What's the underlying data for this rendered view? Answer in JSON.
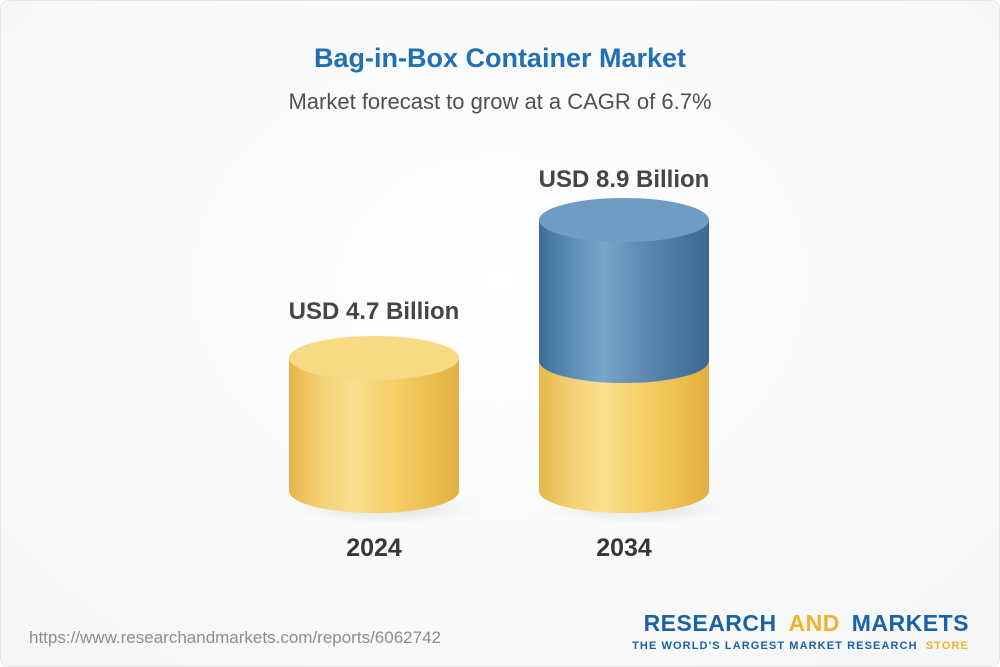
{
  "header": {
    "title": "Bag-in-Box Container Market",
    "subtitle": "Market forecast to grow at a CAGR of 6.7%"
  },
  "chart_data": {
    "type": "bar",
    "style": "3d-cylinder",
    "title": "Bag-in-Box Container Market",
    "subtitle": "Market forecast to grow at a CAGR of 6.7%",
    "cagr_percent": 6.7,
    "unit": "USD Billion",
    "categories": [
      "2024",
      "2034"
    ],
    "values": [
      4.7,
      8.9
    ],
    "bars": [
      {
        "category": "2024",
        "value": 4.7,
        "value_label": "USD 4.7 Billion",
        "segment_colors": [
          "#f5cf66"
        ]
      },
      {
        "category": "2034",
        "value": 8.9,
        "value_label": "USD 8.9 Billion",
        "segment_colors": [
          "#f5cf66",
          "#5b89b0"
        ]
      }
    ],
    "ylim": [
      0,
      9.5
    ],
    "grid": false,
    "legend": "none",
    "axes_hidden": true
  },
  "footer": {
    "url": "https://www.researchandmarkets.com/reports/6062742",
    "logo": {
      "word1": "RESEARCH",
      "word2": "AND",
      "word3": "MARKETS",
      "tagline_main": "THE WORLD'S LARGEST MARKET RESEARCH",
      "tagline_accent": "STORE",
      "navy": "#1b61a9",
      "gold": "#f0b32e"
    }
  }
}
